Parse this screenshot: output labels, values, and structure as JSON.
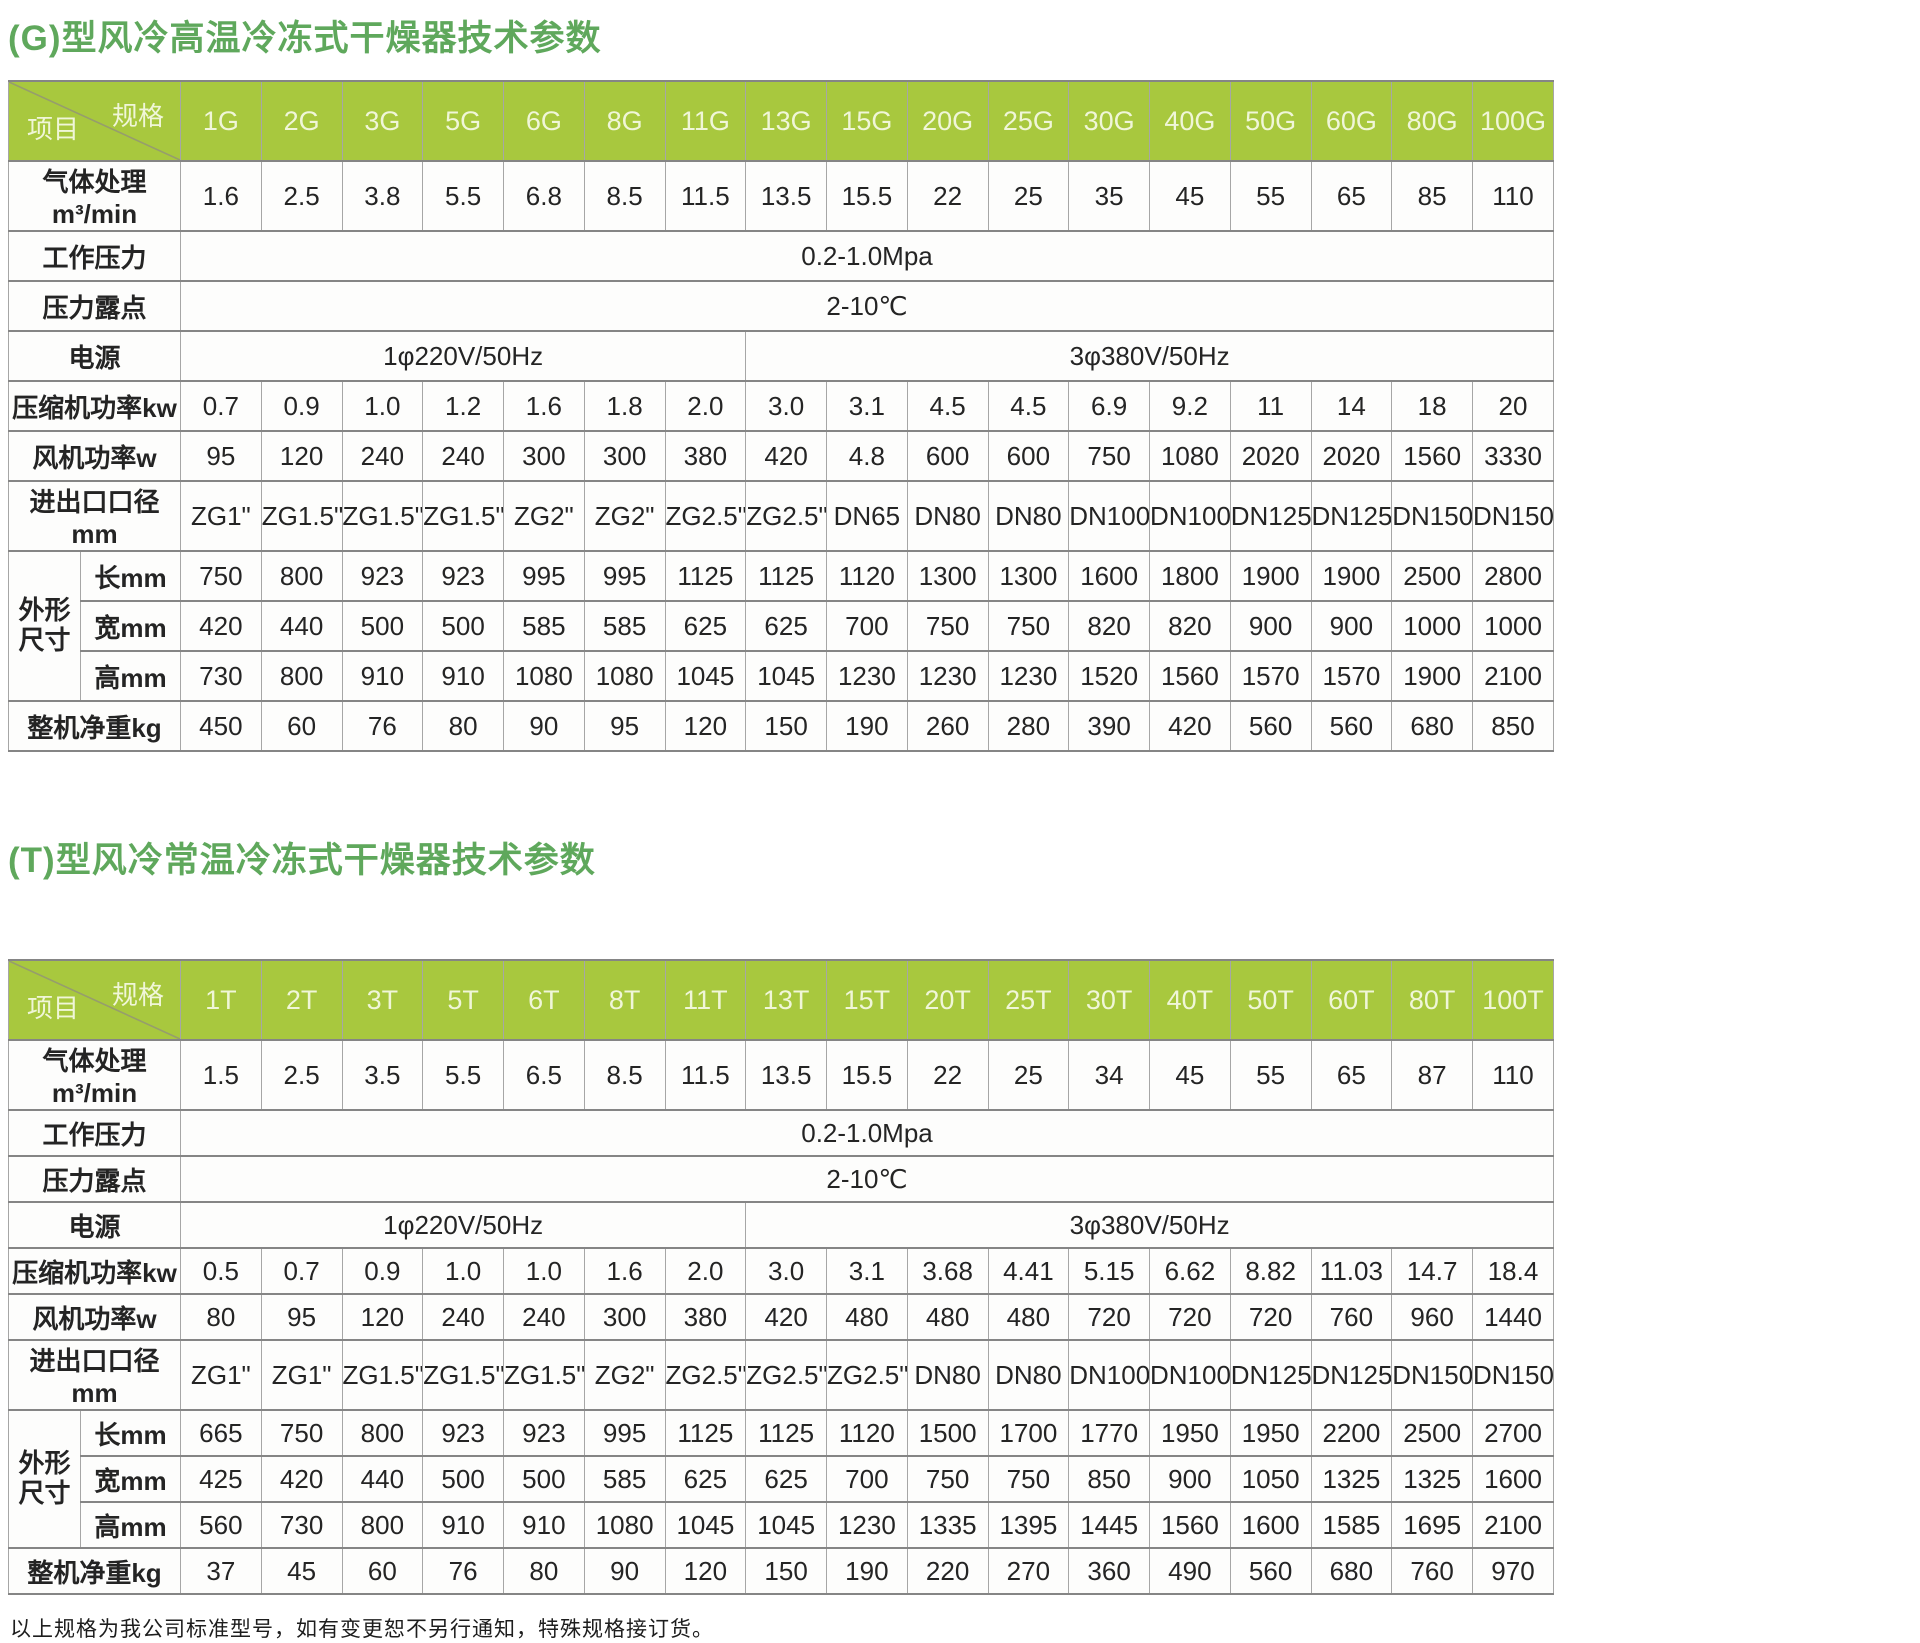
{
  "page": {
    "footer_note": "以上规格为我公司标准型号，如有变更恕不另行通知，特殊规格接订货。"
  },
  "tables": [
    {
      "title": "(G)型风冷高温冷冻式干燥器技术参数",
      "corner": {
        "top_right": "规格",
        "bottom_left": "项目"
      },
      "columns": [
        "1G",
        "2G",
        "3G",
        "5G",
        "6G",
        "8G",
        "11G",
        "13G",
        "15G",
        "20G",
        "25G",
        "30G",
        "40G",
        "50G",
        "60G",
        "80G",
        "100G"
      ],
      "rows": [
        {
          "type": "values",
          "label": "气体处理m³/min",
          "values": [
            "1.6",
            "2.5",
            "3.8",
            "5.5",
            "6.8",
            "8.5",
            "11.5",
            "13.5",
            "15.5",
            "22",
            "25",
            "35",
            "45",
            "55",
            "65",
            "85",
            "110"
          ]
        },
        {
          "type": "merged",
          "label": "工作压力",
          "value": "0.2-1.0Mpa"
        },
        {
          "type": "merged",
          "label": "压力露点",
          "value": "2-10℃"
        },
        {
          "type": "split",
          "label": "电源",
          "left": "1φ220V/50Hz",
          "left_span": 7,
          "right": "3φ380V/50Hz",
          "right_span": 10
        },
        {
          "type": "values",
          "label": "压缩机功率kw",
          "values": [
            "0.7",
            "0.9",
            "1.0",
            "1.2",
            "1.6",
            "1.8",
            "2.0",
            "3.0",
            "3.1",
            "4.5",
            "4.5",
            "6.9",
            "9.2",
            "11",
            "14",
            "18",
            "20"
          ]
        },
        {
          "type": "values",
          "label": "风机功率w",
          "values": [
            "95",
            "120",
            "240",
            "240",
            "300",
            "300",
            "380",
            "420",
            "4.8",
            "600",
            "600",
            "750",
            "1080",
            "2020",
            "2020",
            "1560",
            "3330"
          ]
        },
        {
          "type": "values",
          "label": "进出口口径mm",
          "values": [
            "ZG1\"",
            "ZG1.5\"",
            "ZG1.5\"",
            "ZG1.5\"",
            "ZG2\"",
            "ZG2\"",
            "ZG2.5\"",
            "ZG2.5\"",
            "DN65",
            "DN80",
            "DN80",
            "DN100",
            "DN100",
            "DN125",
            "DN125",
            "DN150",
            "DN150"
          ]
        },
        {
          "type": "group",
          "label": "外形尺寸",
          "label_lines": [
            "外形",
            "尺寸"
          ],
          "subrows": [
            {
              "label": "长mm",
              "values": [
                "750",
                "800",
                "923",
                "923",
                "995",
                "995",
                "1125",
                "1125",
                "1120",
                "1300",
                "1300",
                "1600",
                "1800",
                "1900",
                "1900",
                "2500",
                "2800"
              ]
            },
            {
              "label": "宽mm",
              "values": [
                "420",
                "440",
                "500",
                "500",
                "585",
                "585",
                "625",
                "625",
                "700",
                "750",
                "750",
                "820",
                "820",
                "900",
                "900",
                "1000",
                "1000"
              ]
            },
            {
              "label": "高mm",
              "values": [
                "730",
                "800",
                "910",
                "910",
                "1080",
                "1080",
                "1045",
                "1045",
                "1230",
                "1230",
                "1230",
                "1520",
                "1560",
                "1570",
                "1570",
                "1900",
                "2100"
              ]
            }
          ]
        },
        {
          "type": "values",
          "label": "整机净重kg",
          "values": [
            "450",
            "60",
            "76",
            "80",
            "90",
            "95",
            "120",
            "150",
            "190",
            "260",
            "280",
            "390",
            "420",
            "560",
            "560",
            "680",
            "850"
          ]
        }
      ]
    },
    {
      "title": "(T)型风冷常温冷冻式干燥器技术参数",
      "corner": {
        "top_right": "规格",
        "bottom_left": "项目"
      },
      "columns": [
        "1T",
        "2T",
        "3T",
        "5T",
        "6T",
        "8T",
        "11T",
        "13T",
        "15T",
        "20T",
        "25T",
        "30T",
        "40T",
        "50T",
        "60T",
        "80T",
        "100T"
      ],
      "rows": [
        {
          "type": "values",
          "label": "气体处理m³/min",
          "values": [
            "1.5",
            "2.5",
            "3.5",
            "5.5",
            "6.5",
            "8.5",
            "11.5",
            "13.5",
            "15.5",
            "22",
            "25",
            "34",
            "45",
            "55",
            "65",
            "87",
            "110"
          ]
        },
        {
          "type": "merged",
          "label": "工作压力",
          "value": "0.2-1.0Mpa"
        },
        {
          "type": "merged",
          "label": "压力露点",
          "value": "2-10℃"
        },
        {
          "type": "split",
          "label": "电源",
          "left": "1φ220V/50Hz",
          "left_span": 7,
          "right": "3φ380V/50Hz",
          "right_span": 10
        },
        {
          "type": "values",
          "label": "压缩机功率kw",
          "values": [
            "0.5",
            "0.7",
            "0.9",
            "1.0",
            "1.0",
            "1.6",
            "2.0",
            "3.0",
            "3.1",
            "3.68",
            "4.41",
            "5.15",
            "6.62",
            "8.82",
            "11.03",
            "14.7",
            "18.4"
          ]
        },
        {
          "type": "values",
          "label": "风机功率w",
          "values": [
            "80",
            "95",
            "120",
            "240",
            "240",
            "300",
            "380",
            "420",
            "480",
            "480",
            "480",
            "720",
            "720",
            "720",
            "760",
            "960",
            "1440"
          ]
        },
        {
          "type": "values",
          "label": "进出口口径mm",
          "values": [
            "ZG1\"",
            "ZG1\"",
            "ZG1.5\"",
            "ZG1.5\"",
            "ZG1.5\"",
            "ZG2\"",
            "ZG2.5\"",
            "ZG2.5\"",
            "ZG2.5\"",
            "DN80",
            "DN80",
            "DN100",
            "DN100",
            "DN125",
            "DN125",
            "DN150",
            "DN150"
          ]
        },
        {
          "type": "group",
          "label": "外形尺寸",
          "label_lines": [
            "外形",
            "尺寸"
          ],
          "subrows": [
            {
              "label": "长mm",
              "values": [
                "665",
                "750",
                "800",
                "923",
                "923",
                "995",
                "1125",
                "1125",
                "1120",
                "1500",
                "1700",
                "1770",
                "1950",
                "1950",
                "2200",
                "2500",
                "2700"
              ]
            },
            {
              "label": "宽mm",
              "values": [
                "425",
                "420",
                "440",
                "500",
                "500",
                "585",
                "625",
                "625",
                "700",
                "750",
                "750",
                "850",
                "900",
                "1050",
                "1325",
                "1325",
                "1600"
              ]
            },
            {
              "label": "高mm",
              "values": [
                "560",
                "730",
                "800",
                "910",
                "910",
                "1080",
                "1045",
                "1045",
                "1230",
                "1335",
                "1395",
                "1445",
                "1560",
                "1600",
                "1585",
                "1695",
                "2100"
              ]
            }
          ]
        },
        {
          "type": "values",
          "label": "整机净重kg",
          "values": [
            "37",
            "45",
            "60",
            "76",
            "80",
            "90",
            "120",
            "150",
            "190",
            "220",
            "270",
            "360",
            "490",
            "560",
            "680",
            "760",
            "970"
          ]
        }
      ]
    }
  ]
}
